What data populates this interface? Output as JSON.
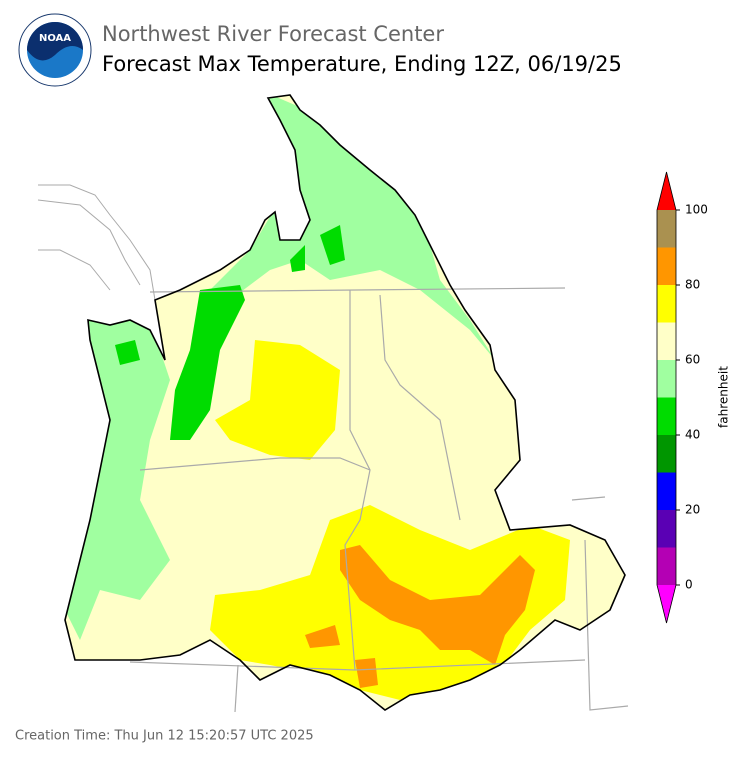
{
  "header": {
    "logo": "NOAA",
    "org": "Northwest River Forecast Center",
    "title": "Forecast Max Temperature, Ending 12Z, 06/19/25"
  },
  "colorbar": {
    "label": "fahrenheit",
    "bounds": [
      0,
      10,
      20,
      30,
      40,
      50,
      60,
      70,
      80,
      90,
      100
    ],
    "colors": [
      "#b400b4",
      "#5a00b4",
      "#0000ff",
      "#009600",
      "#00dc00",
      "#a0ffa0",
      "#ffffc8",
      "#ffff00",
      "#ff9600",
      "#aa9150"
    ],
    "under": "#ff00ff",
    "over": "#ff0000",
    "ticks": [
      0,
      20,
      40,
      60,
      80,
      100
    ]
  },
  "footer": {
    "creation": "Creation Time: Thu Jun 12 15:20:57 UTC 2025"
  }
}
